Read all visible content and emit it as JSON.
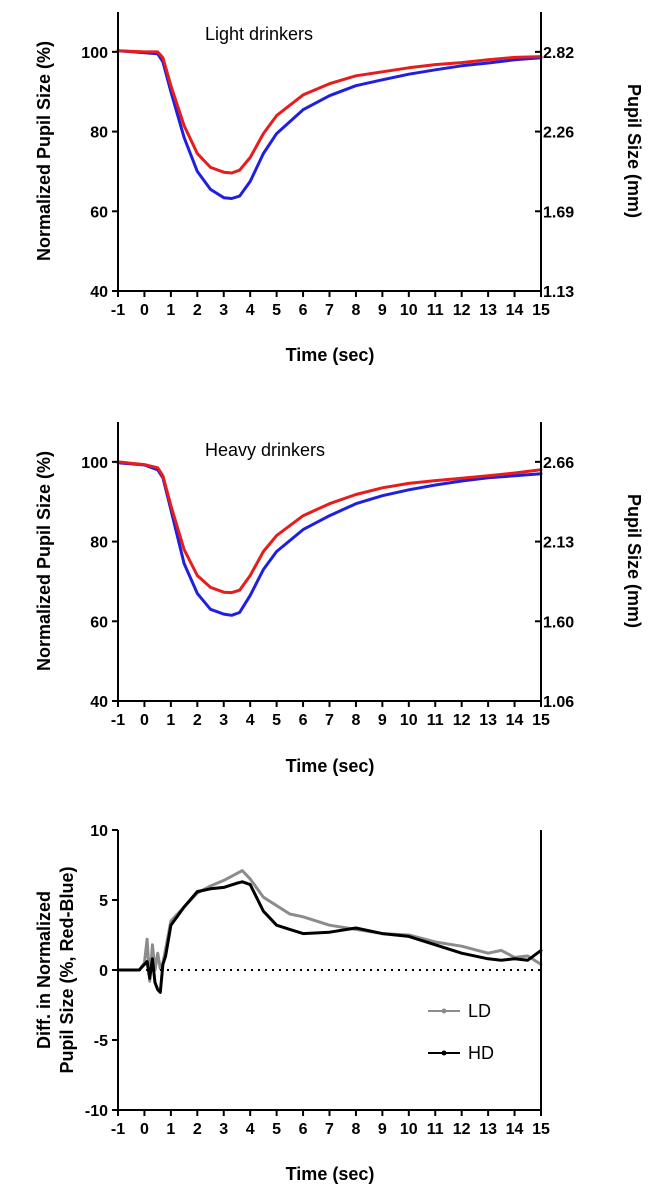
{
  "chart_data": [
    {
      "type": "line",
      "title": "",
      "annotation": "Light drinkers",
      "xlabel": "Time (sec)",
      "ylabel": "Normalized Pupil Size (%)",
      "y2label": "Pupil Size (mm)",
      "xlim": [
        -1,
        15
      ],
      "ylim": [
        40,
        110
      ],
      "x_ticks": [
        "-1",
        "0",
        "1",
        "2",
        "3",
        "4",
        "5",
        "6",
        "7",
        "8",
        "9",
        "10",
        "11",
        "12",
        "13",
        "14",
        "15"
      ],
      "y_ticks": [
        40,
        60,
        80,
        100
      ],
      "y2_ticks": [
        {
          "value": 40,
          "label": "1.13"
        },
        {
          "value": 60,
          "label": "1.69"
        },
        {
          "value": 80,
          "label": "2.26"
        },
        {
          "value": 100,
          "label": "2.82"
        }
      ],
      "grid": false,
      "series": [
        {
          "color": "#1f1fe0",
          "x": [
            -1,
            0,
            0.5,
            0.7,
            1,
            1.5,
            2,
            2.5,
            3,
            3.3,
            3.6,
            4,
            4.5,
            5,
            6,
            7,
            8,
            9,
            10,
            11,
            12,
            13,
            14,
            15
          ],
          "y": [
            100.3,
            99.8,
            99.5,
            97.5,
            90,
            78.5,
            70,
            65.5,
            63.4,
            63.2,
            63.8,
            67.5,
            74.5,
            79.5,
            85.5,
            89,
            91.5,
            93,
            94.4,
            95.5,
            96.5,
            97.2,
            98,
            98.5
          ]
        },
        {
          "color": "#e81c1c",
          "x": [
            -1,
            0,
            0.5,
            0.7,
            1,
            1.5,
            2,
            2.5,
            3,
            3.3,
            3.6,
            4,
            4.5,
            5,
            6,
            7,
            8,
            9,
            10,
            11,
            12,
            13,
            14,
            15
          ],
          "y": [
            100.3,
            100,
            100,
            98.5,
            91.5,
            81.5,
            74.5,
            71,
            69.8,
            69.6,
            70.3,
            73.5,
            79.5,
            84,
            89.2,
            92,
            94,
            95,
            96,
            96.8,
            97.3,
            98,
            98.6,
            98.8
          ]
        }
      ]
    },
    {
      "type": "line",
      "title": "",
      "annotation": "Heavy drinkers",
      "xlabel": "Time (sec)",
      "ylabel": "Normalized Pupil Size (%)",
      "y2label": "Pupil Size (mm)",
      "xlim": [
        -1,
        15
      ],
      "ylim": [
        40,
        110
      ],
      "x_ticks": [
        "-1",
        "0",
        "1",
        "2",
        "3",
        "4",
        "5",
        "6",
        "7",
        "8",
        "9",
        "10",
        "11",
        "12",
        "13",
        "14",
        "15"
      ],
      "y_ticks": [
        40,
        60,
        80,
        100
      ],
      "y2_ticks": [
        {
          "value": 40,
          "label": "1.06"
        },
        {
          "value": 60,
          "label": "1.60"
        },
        {
          "value": 80,
          "label": "2.13"
        },
        {
          "value": 100,
          "label": "2.66"
        }
      ],
      "grid": false,
      "series": [
        {
          "color": "#1f1fe0",
          "x": [
            -1,
            0,
            0.5,
            0.7,
            1,
            1.5,
            2,
            2.5,
            3,
            3.3,
            3.6,
            4,
            4.5,
            5,
            6,
            7,
            8,
            9,
            10,
            11,
            12,
            13,
            14,
            15
          ],
          "y": [
            99.8,
            99.2,
            98,
            96,
            88,
            74.5,
            67,
            63,
            61.8,
            61.5,
            62.2,
            66.5,
            73,
            77.5,
            83,
            86.5,
            89.5,
            91.5,
            93,
            94.2,
            95.2,
            96,
            96.5,
            97
          ]
        },
        {
          "color": "#e81c1c",
          "x": [
            -1,
            0,
            0.5,
            0.7,
            1,
            1.5,
            2,
            2.5,
            3,
            3.3,
            3.6,
            4,
            4.5,
            5,
            6,
            7,
            8,
            9,
            10,
            11,
            12,
            13,
            14,
            15
          ],
          "y": [
            100,
            99.3,
            98.5,
            96.5,
            89,
            78,
            71.5,
            68.5,
            67.3,
            67.2,
            67.8,
            71.5,
            77.5,
            81.5,
            86.5,
            89.5,
            91.8,
            93.5,
            94.6,
            95.3,
            95.9,
            96.5,
            97.2,
            98
          ]
        }
      ]
    },
    {
      "type": "line",
      "title": "",
      "xlabel": "Time (sec)",
      "ylabel": "Diff. in Normalized\nPupil Size (%, Red-Blue)",
      "xlim": [
        -1,
        15
      ],
      "ylim": [
        -10,
        10
      ],
      "x_ticks": [
        "-1",
        "0",
        "1",
        "2",
        "3",
        "4",
        "5",
        "6",
        "7",
        "8",
        "9",
        "10",
        "11",
        "12",
        "13",
        "14",
        "15"
      ],
      "y_ticks": [
        -10,
        -5,
        0,
        5,
        10
      ],
      "reference_line": 0,
      "grid": false,
      "legend_position": "bottom-right",
      "series": [
        {
          "name": "LD",
          "color": "#8c8c8c",
          "x": [
            -1,
            -0.2,
            0,
            0.1,
            0.2,
            0.3,
            0.4,
            0.5,
            0.6,
            0.7,
            0.8,
            1,
            1.5,
            2,
            2.5,
            3,
            3.5,
            3.7,
            4,
            4.5,
            5,
            5.5,
            6,
            7,
            8,
            9,
            10,
            11,
            12,
            13,
            13.5,
            14,
            14.5,
            15
          ],
          "y": [
            0,
            0,
            0.5,
            2.2,
            -0.8,
            1.8,
            0,
            1.2,
            0.1,
            0.5,
            1.5,
            3.5,
            4.5,
            5.5,
            6,
            6.4,
            6.9,
            7.1,
            6.5,
            5.2,
            4.6,
            4.0,
            3.8,
            3.2,
            2.9,
            2.6,
            2.5,
            2.0,
            1.7,
            1.2,
            1.4,
            0.9,
            1.0,
            0.4
          ]
        },
        {
          "name": "HD",
          "color": "#000000",
          "x": [
            -1,
            -0.2,
            0,
            0.1,
            0.2,
            0.3,
            0.4,
            0.5,
            0.6,
            0.7,
            0.8,
            1,
            1.5,
            2,
            2.5,
            3,
            3.5,
            3.7,
            4,
            4.5,
            5,
            5.5,
            6,
            7,
            8,
            9,
            10,
            11,
            12,
            13,
            13.5,
            14,
            14.5,
            15
          ],
          "y": [
            0,
            0,
            0.4,
            0.6,
            -0.6,
            0.8,
            -0.9,
            -1.4,
            -1.6,
            0.4,
            1.0,
            3.2,
            4.5,
            5.6,
            5.8,
            5.9,
            6.2,
            6.3,
            6.1,
            4.2,
            3.2,
            2.9,
            2.6,
            2.7,
            3.0,
            2.6,
            2.4,
            1.8,
            1.2,
            0.8,
            0.7,
            0.8,
            0.7,
            1.4
          ]
        }
      ]
    }
  ]
}
